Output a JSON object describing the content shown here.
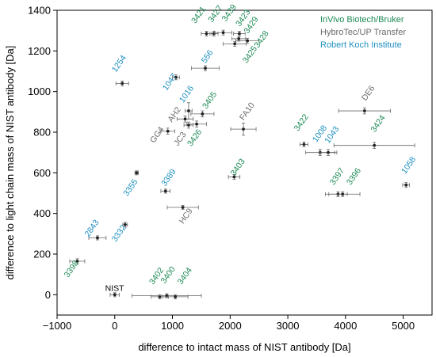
{
  "chart_data": {
    "type": "scatter",
    "title": "",
    "xlabel": "difference to intact mass of NIST antibody [Da]",
    "ylabel": "difference to light chain mass of NIST antibody [Da]",
    "xlim": [
      -1000,
      5500
    ],
    "ylim": [
      -100,
      1400
    ],
    "xticks": [
      -1000,
      0,
      1000,
      2000,
      3000,
      4000,
      5000
    ],
    "yticks": [
      0,
      200,
      400,
      600,
      800,
      1000,
      1200,
      1400
    ],
    "xtick_labels": [
      "−1000",
      "0",
      "1000",
      "2000",
      "3000",
      "4000",
      "5000"
    ],
    "ytick_labels": [
      "0",
      "200",
      "400",
      "600",
      "800",
      "1000",
      "1200",
      "1400"
    ],
    "grid": false,
    "legend_position": "top-right",
    "legend": [
      {
        "name": "InVivo Biotech/Bruker",
        "color": "#1e8a56"
      },
      {
        "name": "HybroTec/UP Transfer",
        "color": "#6b6b6b"
      },
      {
        "name": "Robert Koch Institute",
        "color": "#1e90c0"
      }
    ],
    "points": [
      {
        "label": "NIST",
        "x": 0,
        "y": 0,
        "xerr": 80,
        "yerr": 10,
        "group": "black",
        "lx": -2,
        "ly": 18,
        "rot": 0
      },
      {
        "label": "3398",
        "x": -650,
        "y": 165,
        "xerr": 130,
        "yerr": 12,
        "group": 0,
        "lx": -65,
        "ly": -45,
        "rot": -55
      },
      {
        "label": "2843",
        "x": -300,
        "y": 280,
        "xerr": 150,
        "yerr": 10,
        "group": 2,
        "lx": -60,
        "ly": 40,
        "rot": -55
      },
      {
        "label": "3332",
        "x": 180,
        "y": 345,
        "xerr": 40,
        "yerr": 12,
        "group": 2,
        "lx": -70,
        "ly": -50,
        "rot": -55
      },
      {
        "label": "3355",
        "x": 380,
        "y": 600,
        "xerr": 30,
        "yerr": 10,
        "group": 2,
        "lx": -70,
        "ly": -80,
        "rot": -55
      },
      {
        "label": "3389",
        "x": 880,
        "y": 510,
        "xerr": 80,
        "yerr": 10,
        "group": 2,
        "lx": 90,
        "ly": 60,
        "rot": -55
      },
      {
        "label": "HC9",
        "x": 1180,
        "y": 430,
        "xerr": 270,
        "yerr": 10,
        "group": 1,
        "lx": 90,
        "ly": -50,
        "rot": -55
      },
      {
        "label": "1254",
        "x": 130,
        "y": 1040,
        "xerr": 110,
        "yerr": 12,
        "group": 2,
        "lx": -20,
        "ly": 90,
        "rot": -55
      },
      {
        "label": "1047",
        "x": 1060,
        "y": 1070,
        "xerr": 60,
        "yerr": 12,
        "group": 2,
        "lx": -70,
        "ly": -30,
        "rot": -55
      },
      {
        "label": "556",
        "x": 1570,
        "y": 1115,
        "xerr": 240,
        "yerr": 12,
        "group": 2,
        "lx": 70,
        "ly": 50,
        "rot": -55
      },
      {
        "label": "1016",
        "x": 1280,
        "y": 905,
        "xerr": 60,
        "yerr": 40,
        "group": 2,
        "lx": 0,
        "ly": 75,
        "rot": -55
      },
      {
        "label": "AH2",
        "x": 1220,
        "y": 865,
        "xerr": 140,
        "yerr": 15,
        "group": 1,
        "lx": -150,
        "ly": 15,
        "rot": -55
      },
      {
        "label": "GG4",
        "x": 920,
        "y": 805,
        "xerr": 120,
        "yerr": 15,
        "group": 1,
        "lx": -150,
        "ly": -25,
        "rot": -55
      },
      {
        "label": "JC3",
        "x": 1280,
        "y": 835,
        "xerr": 80,
        "yerr": 15,
        "group": 1,
        "lx": -110,
        "ly": -75,
        "rot": -55
      },
      {
        "label": "3405",
        "x": 1520,
        "y": 890,
        "xerr": 200,
        "yerr": 15,
        "group": 0,
        "lx": 160,
        "ly": 60,
        "rot": -55
      },
      {
        "label": "3426",
        "x": 1420,
        "y": 840,
        "xerr": 170,
        "yerr": 15,
        "group": 0,
        "lx": 0,
        "ly": -75,
        "rot": -55
      },
      {
        "label": "FA10",
        "x": 2230,
        "y": 815,
        "xerr": 220,
        "yerr": 30,
        "group": 1,
        "lx": 100,
        "ly": 80,
        "rot": -55
      },
      {
        "label": "3403",
        "x": 2070,
        "y": 580,
        "xerr": 100,
        "yerr": 12,
        "group": 0,
        "lx": 100,
        "ly": 40,
        "rot": -55
      },
      {
        "label": "3421",
        "x": 1590,
        "y": 1285,
        "xerr": 90,
        "yerr": 12,
        "group": 0,
        "lx": -100,
        "ly": 85,
        "rot": -55
      },
      {
        "label": "3427",
        "x": 1720,
        "y": 1285,
        "xerr": 70,
        "yerr": 12,
        "group": 0,
        "lx": 60,
        "ly": 90,
        "rot": -55
      },
      {
        "label": "3439",
        "x": 1880,
        "y": 1290,
        "xerr": 150,
        "yerr": 12,
        "group": 0,
        "lx": 140,
        "ly": 90,
        "rot": -55
      },
      {
        "label": "3423",
        "x": 2160,
        "y": 1285,
        "xerr": 100,
        "yerr": 12,
        "group": 0,
        "lx": 100,
        "ly": 70,
        "rot": -55
      },
      {
        "label": "3429",
        "x": 2150,
        "y": 1260,
        "xerr": 120,
        "yerr": 12,
        "group": 0,
        "lx": 250,
        "ly": 60,
        "rot": -55
      },
      {
        "label": "3428",
        "x": 2300,
        "y": 1250,
        "xerr": 200,
        "yerr": 12,
        "group": 0,
        "lx": 280,
        "ly": 0,
        "rot": -55
      },
      {
        "label": "3425",
        "x": 2080,
        "y": 1235,
        "xerr": 200,
        "yerr": 12,
        "group": 0,
        "lx": 300,
        "ly": -60,
        "rot": -55
      },
      {
        "label": "3402",
        "x": 780,
        "y": -10,
        "xerr": 150,
        "yerr": 10,
        "group": 0,
        "lx": -20,
        "ly": 95,
        "rot": -55
      },
      {
        "label": "3400",
        "x": 900,
        "y": -5,
        "xerr": 600,
        "yerr": 10,
        "group": 0,
        "lx": 60,
        "ly": 95,
        "rot": -55
      },
      {
        "label": "3404",
        "x": 1050,
        "y": -10,
        "xerr": 220,
        "yerr": 10,
        "group": 0,
        "lx": 200,
        "ly": 95,
        "rot": -55
      },
      {
        "label": "DE6",
        "x": 4330,
        "y": 905,
        "xerr": 450,
        "yerr": 15,
        "group": 1,
        "lx": 100,
        "ly": 80,
        "rot": -55
      },
      {
        "label": "3422",
        "x": 3280,
        "y": 740,
        "xerr": 70,
        "yerr": 12,
        "group": 0,
        "lx": -10,
        "ly": 100,
        "rot": -55
      },
      {
        "label": "1008",
        "x": 3560,
        "y": 700,
        "xerr": 250,
        "yerr": 15,
        "group": 2,
        "lx": 30,
        "ly": 85,
        "rot": -55
      },
      {
        "label": "1043",
        "x": 3700,
        "y": 700,
        "xerr": 150,
        "yerr": 15,
        "group": 2,
        "lx": 100,
        "ly": 80,
        "rot": -55
      },
      {
        "label": "3424",
        "x": 4500,
        "y": 735,
        "xerr": 700,
        "yerr": 15,
        "group": 0,
        "lx": 100,
        "ly": 100,
        "rot": -55
      },
      {
        "label": "3397",
        "x": 3870,
        "y": 495,
        "xerr": 160,
        "yerr": 12,
        "group": 0,
        "lx": 20,
        "ly": 80,
        "rot": -55
      },
      {
        "label": "3396",
        "x": 3950,
        "y": 495,
        "xerr": 300,
        "yerr": 12,
        "group": 0,
        "lx": 230,
        "ly": 80,
        "rot": -55
      },
      {
        "label": "1058",
        "x": 5050,
        "y": 540,
        "xerr": 60,
        "yerr": 12,
        "group": 2,
        "lx": 80,
        "ly": 90,
        "rot": -55
      }
    ]
  }
}
